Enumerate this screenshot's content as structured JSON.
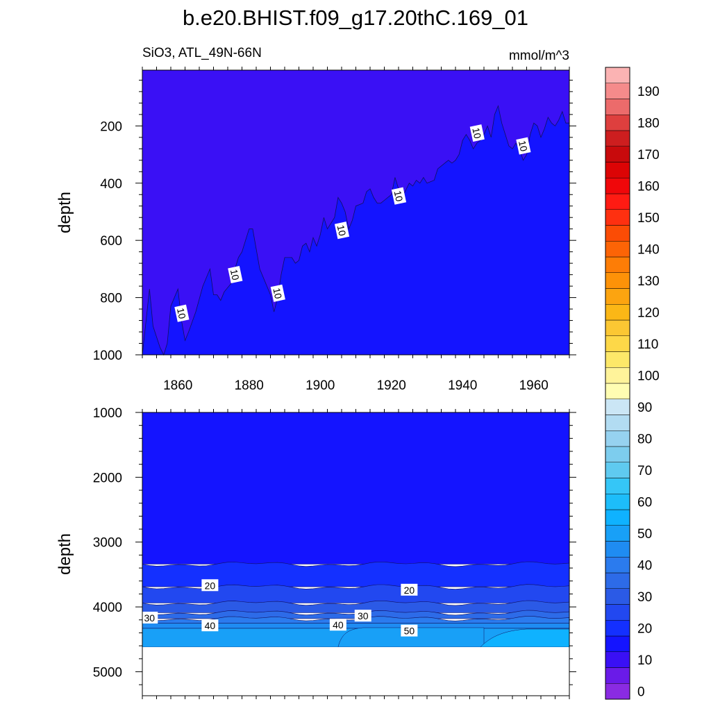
{
  "title": "b.e20.BHIST.f09_g17.20thC.169_01",
  "left_subtitle": "SiO3, ATL_49N-66N",
  "right_subtitle": "mmol/m^3",
  "colorbar": {
    "levels": [
      0,
      5,
      10,
      15,
      20,
      25,
      30,
      35,
      40,
      45,
      50,
      55,
      60,
      65,
      70,
      75,
      80,
      85,
      90,
      95,
      100,
      105,
      110,
      115,
      120,
      125,
      130,
      135,
      140,
      145,
      150,
      155,
      160,
      165,
      170,
      175,
      180,
      185,
      190,
      195
    ],
    "tick_labels": [
      "0",
      "10",
      "20",
      "30",
      "40",
      "50",
      "60",
      "70",
      "80",
      "90",
      "100",
      "110",
      "120",
      "130",
      "140",
      "150",
      "160",
      "170",
      "180",
      "190"
    ],
    "colors": [
      "#8a2be2",
      "#6a1be8",
      "#3a10f5",
      "#1414ff",
      "#1430ff",
      "#2248f0",
      "#2b5ae6",
      "#2d6be8",
      "#2b7bee",
      "#1f8cf2",
      "#18a0f7",
      "#0fb2ff",
      "#1dbdfa",
      "#35c6f7",
      "#5fcaf0",
      "#7dcdee",
      "#96d2f0",
      "#b2dcf2",
      "#cbe6f5",
      "#fffdb2",
      "#fff39a",
      "#fde869",
      "#fdd848",
      "#fbc733",
      "#fbb716",
      "#fca410",
      "#fd9208",
      "#fd7d06",
      "#fc6406",
      "#fb4c05",
      "#fe3010",
      "#ff1b13",
      "#f0070a",
      "#dc0405",
      "#c80a0c",
      "#cd1e1f",
      "#de3f3e",
      "#ec6b6b",
      "#f58b8b",
      "#fbb3b3"
    ]
  },
  "chart_data": [
    {
      "type": "contour",
      "panel": "upper",
      "ylabel": "depth",
      "xlabel": "",
      "xlim": [
        1850,
        1970
      ],
      "ylim": [
        1000,
        5
      ],
      "x_ticks": [
        "1860",
        "1880",
        "1900",
        "1920",
        "1940",
        "1960"
      ],
      "y_ticks": [
        "200",
        "400",
        "600",
        "800",
        "1000"
      ],
      "fill_colors": {
        "below_10": "#3a10f5",
        "above_10": "#1414ff"
      },
      "contour_10_line": {
        "x": [
          1850,
          1852,
          1853,
          1855,
          1856,
          1857,
          1858,
          1860,
          1861,
          1862,
          1863,
          1865,
          1867,
          1869,
          1870,
          1871,
          1872,
          1873,
          1875,
          1876,
          1877,
          1878,
          1879,
          1880,
          1881,
          1882,
          1883,
          1885,
          1886,
          1887,
          1888,
          1889,
          1890,
          1892,
          1893,
          1894,
          1895,
          1896,
          1897,
          1898,
          1899,
          1900,
          1901,
          1902,
          1904,
          1905,
          1906,
          1907,
          1908,
          1909,
          1910,
          1912,
          1913,
          1914,
          1915,
          1916,
          1917,
          1918,
          1920,
          1921,
          1922,
          1923,
          1925,
          1926,
          1927,
          1928,
          1929,
          1930,
          1932,
          1933,
          1935,
          1936,
          1937,
          1938,
          1939,
          1940,
          1941,
          1942,
          1943,
          1944,
          1945,
          1946,
          1947,
          1948,
          1949,
          1950,
          1951,
          1952,
          1953,
          1954,
          1955,
          1956,
          1957,
          1958,
          1959,
          1960,
          1961,
          1962,
          1963,
          1964,
          1965,
          1966,
          1967,
          1968,
          1969,
          1970
        ],
        "y": [
          1000,
          770,
          900,
          975,
          1000,
          960,
          830,
          770,
          880,
          950,
          920,
          850,
          760,
          700,
          790,
          790,
          810,
          780,
          750,
          700,
          660,
          640,
          600,
          560,
          560,
          630,
          700,
          760,
          790,
          850,
          800,
          720,
          660,
          660,
          680,
          670,
          620,
          610,
          640,
          590,
          620,
          580,
          520,
          560,
          520,
          450,
          470,
          500,
          560,
          530,
          480,
          470,
          430,
          420,
          450,
          470,
          470,
          460,
          440,
          380,
          420,
          450,
          400,
          410,
          390,
          400,
          380,
          400,
          390,
          350,
          330,
          320,
          330,
          320,
          300,
          250,
          230,
          250,
          280,
          260,
          250,
          230,
          200,
          240,
          160,
          130,
          190,
          230,
          270,
          280,
          260,
          280,
          320,
          300,
          230,
          190,
          200,
          240,
          210,
          170,
          190,
          200,
          180,
          150,
          190,
          190
        ]
      },
      "contour_labels": [
        {
          "text": "10",
          "x": 1861,
          "y": 855
        },
        {
          "text": "10",
          "x": 1876,
          "y": 720
        },
        {
          "text": "10",
          "x": 1888,
          "y": 785
        },
        {
          "text": "10",
          "x": 1906,
          "y": 565
        },
        {
          "text": "10",
          "x": 1922,
          "y": 445
        },
        {
          "text": "10",
          "x": 1944,
          "y": 225
        },
        {
          "text": "10",
          "x": 1957,
          "y": 270
        }
      ]
    },
    {
      "type": "contour",
      "panel": "lower",
      "ylabel": "depth",
      "xlabel": "",
      "xlim": [
        1850,
        1970
      ],
      "ylim": [
        5370,
        1000
      ],
      "y_ticks": [
        "1000",
        "2000",
        "3000",
        "4000",
        "5000"
      ],
      "bottom_of_data_depth": 4620,
      "bands": [
        {
          "from": 1000,
          "to": 3340,
          "color": "#1414ff"
        },
        {
          "from": 3340,
          "to": 3690,
          "color": "#1430ff"
        },
        {
          "from": 3690,
          "to": 3940,
          "color": "#2248f0"
        },
        {
          "from": 3940,
          "to": 4090,
          "color": "#2b5ae6"
        },
        {
          "from": 4090,
          "to": 4180,
          "color": "#2d6be8"
        },
        {
          "from": 4180,
          "to": 4250,
          "color": "#2b7bee"
        },
        {
          "from": 4250,
          "to": 4330,
          "color": "#1f8cf2"
        },
        {
          "from": 4330,
          "to": 4620,
          "color": "#18a0f7"
        }
      ],
      "contour_labels": [
        {
          "text": "20",
          "x": 1869,
          "y": 3670
        },
        {
          "text": "20",
          "x": 1925,
          "y": 3740
        },
        {
          "text": "30",
          "x": 1852,
          "y": 4170
        },
        {
          "text": "30",
          "x": 1912,
          "y": 4140
        },
        {
          "text": "40",
          "x": 1869,
          "y": 4290
        },
        {
          "text": "40",
          "x": 1905,
          "y": 4280
        },
        {
          "text": "50",
          "x": 1925,
          "y": 4370
        }
      ]
    }
  ]
}
